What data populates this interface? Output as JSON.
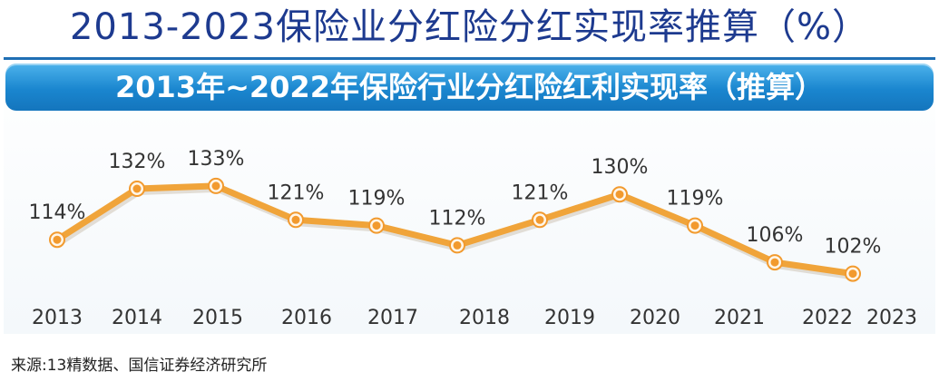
{
  "page": {
    "title": "2013-2023保险业分红险分红实现率推算（%）",
    "source": "来源:13精数据、国信证券经济研究所"
  },
  "chart_data": {
    "type": "line",
    "title": "2013年~2022年保险行业分红险红利实现率（推算）",
    "categories": [
      "2013",
      "2014",
      "2015",
      "2016",
      "2017",
      "2018",
      "2019",
      "2020",
      "2021",
      "2022",
      "2023"
    ],
    "series": [
      {
        "values": [
          114,
          132,
          133,
          121,
          119,
          112,
          121,
          130,
          119,
          106,
          102
        ]
      }
    ],
    "data_labels": [
      "114%",
      "132%",
      "133%",
      "121%",
      "119%",
      "112%",
      "121%",
      "130%",
      "119%",
      "106%",
      "102%"
    ],
    "line_color": "#f0a43a",
    "marker_color": "#f29a2e",
    "banner_color": "#1a86cf",
    "grid": false,
    "legend": "none"
  }
}
